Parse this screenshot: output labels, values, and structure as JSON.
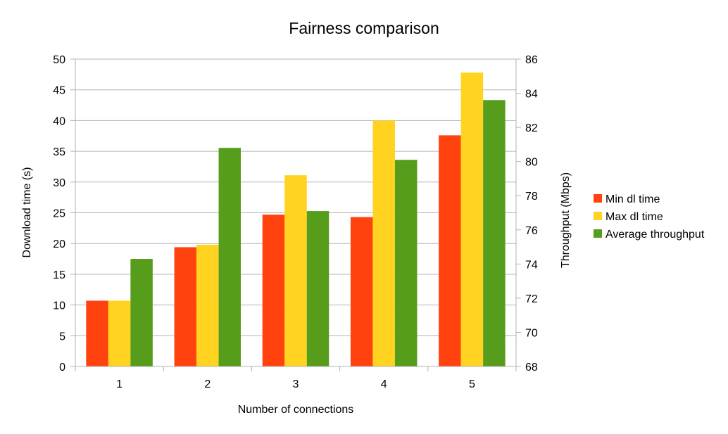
{
  "chart_data": {
    "type": "bar",
    "title": "Fairness comparison",
    "xlabel": "Number of connections",
    "ylabel": "Download time (s)",
    "y2label": "Throughput (Mbps)",
    "categories": [
      "1",
      "2",
      "3",
      "4",
      "5"
    ],
    "ylim": [
      0,
      50
    ],
    "y_ticks": [
      0,
      5,
      10,
      15,
      20,
      25,
      30,
      35,
      40,
      45,
      50
    ],
    "y2lim": [
      68,
      86
    ],
    "y2_ticks": [
      68,
      70,
      72,
      74,
      76,
      78,
      80,
      82,
      84,
      86
    ],
    "grid": true,
    "legend_position": "right",
    "series": [
      {
        "name": "Min dl time",
        "axis": "left",
        "color": "#ff420e",
        "values": [
          10.7,
          19.4,
          24.7,
          24.3,
          37.6
        ]
      },
      {
        "name": "Max dl time",
        "axis": "left",
        "color": "#ffd320",
        "values": [
          10.7,
          19.8,
          31.1,
          40.0,
          47.8
        ]
      },
      {
        "name": "Average throughput",
        "axis": "right",
        "color": "#579d1c",
        "values": [
          74.3,
          80.8,
          77.1,
          80.1,
          83.6
        ]
      }
    ]
  }
}
